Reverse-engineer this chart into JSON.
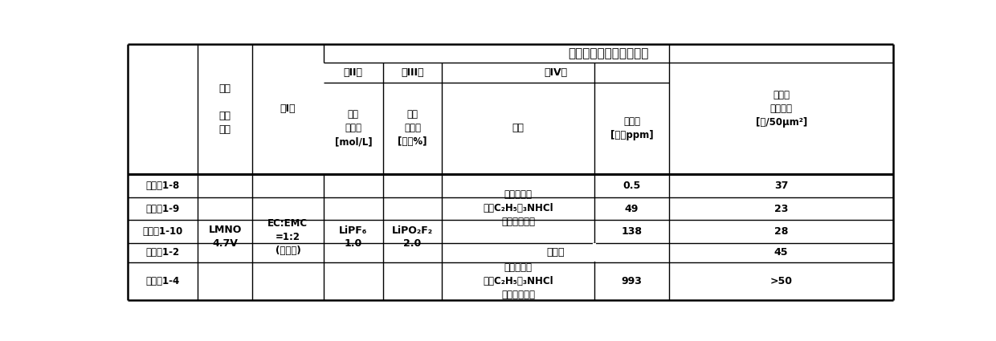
{
  "title_top": "非水电解液电池用电解液",
  "h_col0": "",
  "h_col1": "正极\n\n充电\n电位",
  "h_col2": "（I）",
  "h_col3_top": "（II）",
  "h_col3_sub": "种类\n添加量\n[mol/L]",
  "h_col4_top": "（III）",
  "h_col4_sub": "种类\n添加量\n[质量%]",
  "h_col5_top": "（IV）",
  "h_col5_sub": "种类",
  "h_col6_sub": "添加量\n[质量ppm]",
  "h_col7": "集电体\n的点蚀痕\n[个/50μm²]",
  "shared_lmno": "LMNO\n4.7V",
  "shared_ec": "EC:EMC\n=1:2\n(体积比)",
  "shared_lipf6_a": "LiPF₆",
  "shared_lipf6_b": "1.0",
  "shared_lipo2f2_a": "LiPO₂F₂",
  "shared_lipo2f2_b": "2.0",
  "row_labels": [
    "实施例1-8",
    "实施例1-9",
    "实施例1-10",
    "比较例1-2",
    "比较例1-4"
  ],
  "iv_type_03": "氯化物离子\n（（C₂H₅）₃NHCl\n电离而生成）",
  "iv_type_4": "氯化物离子\n（（C₂H₅）₃NHCl\n电离而生成）",
  "iv_no_add": "无添加",
  "amounts": [
    "0.5",
    "49",
    "138",
    "",
    "993"
  ],
  "results": [
    "37",
    "23",
    "28",
    "45",
    ">50"
  ],
  "bg_color": "#ffffff"
}
